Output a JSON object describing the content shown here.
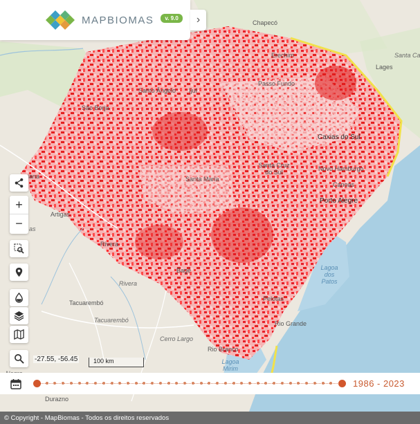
{
  "header": {
    "brand": "MAPBIOMAS",
    "version": "v. 9.0"
  },
  "map": {
    "places": [
      {
        "key": "chapeco",
        "name": "Chapecó"
      },
      {
        "key": "erechim",
        "name": "Erechim"
      },
      {
        "key": "santa_ca",
        "name": "Santa Ca"
      },
      {
        "key": "lages",
        "name": "Lages"
      },
      {
        "key": "santo_angelo",
        "name": "Santo Ângelo"
      },
      {
        "key": "ijui",
        "name": "Ijuí"
      },
      {
        "key": "passo_fundo",
        "name": "Passo Fundo"
      },
      {
        "key": "sao_borja",
        "name": "São Borja"
      },
      {
        "key": "caxias_do_sul",
        "name": "Caxias do Sul"
      },
      {
        "key": "santa_cruz",
        "name": "Santa Cruz do Sul"
      },
      {
        "key": "novo_hamburgo",
        "name": "Novo Hamburgo"
      },
      {
        "key": "santa_maria",
        "name": "Santa Maria"
      },
      {
        "key": "canoas",
        "name": "Canoas"
      },
      {
        "key": "porto_alegre",
        "name": "Porto Alegre"
      },
      {
        "key": "artigas",
        "name": "Artigas"
      },
      {
        "key": "rivera",
        "name": "Rivera"
      },
      {
        "key": "rivera_dept",
        "name": "Rivera"
      },
      {
        "key": "lagoa_patos",
        "name": "Lagoa dos Patos"
      },
      {
        "key": "tacuarembo",
        "name": "Tacuarembó"
      },
      {
        "key": "tacuarembo_dept",
        "name": "Tacuarembó"
      },
      {
        "key": "pelotas",
        "name": "Pelotas"
      },
      {
        "key": "cerro_largo",
        "name": "Cerro Largo"
      },
      {
        "key": "rio_grande",
        "name": "Rio Grande"
      },
      {
        "key": "rio_branco",
        "name": "Rio Branco"
      },
      {
        "key": "lagoa_mirim",
        "name": "Lagoa Mirim"
      },
      {
        "key": "negro",
        "name": "Negro"
      },
      {
        "key": "durazno",
        "name": "Durazno"
      },
      {
        "key": "bagé",
        "name": "Bagé"
      },
      {
        "key": "iana",
        "name": "iana"
      },
      {
        "key": "as",
        "name": "as"
      }
    ],
    "coordinates": "-27.55, -56.45",
    "scale_label": "100 km"
  },
  "timeline": {
    "range_label": "1986 - 2023",
    "start_year": 1986,
    "end_year": 2023
  },
  "footer": {
    "copyright": "© Copyright - MapBiomas - Todos os direitos reservados"
  },
  "icons": {
    "share": "share-icon",
    "zoom_in": "plus-icon",
    "zoom_out": "minus-icon",
    "area_search": "area-search-icon",
    "pin": "map-pin-icon",
    "drop": "water-drop-icon",
    "layers": "layers-icon",
    "basemap": "map-icon",
    "search": "search-icon",
    "calendar": "calendar-icon",
    "chevron": "chevron-right-icon"
  },
  "colors": {
    "accent": "#d2572c",
    "layer_red": "#ee2222",
    "border_yellow": "#f2e14a",
    "ocean": "#a9cfe3",
    "version_badge": "#7ab648"
  }
}
